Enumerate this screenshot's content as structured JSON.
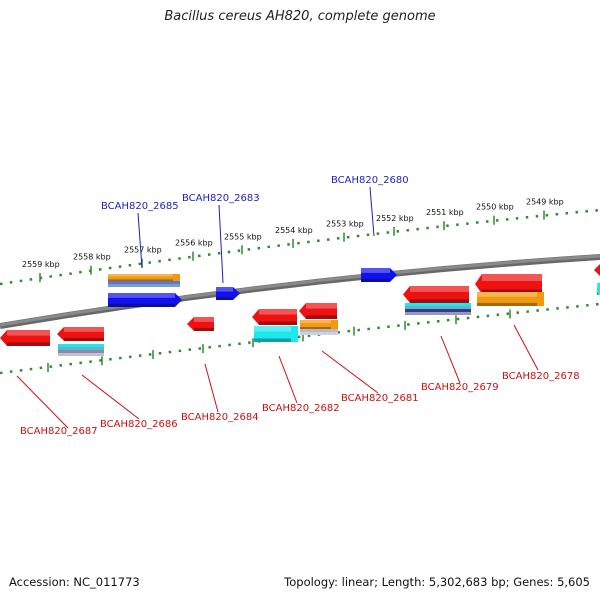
{
  "title": "Bacillus cereus AH820, complete genome",
  "footer": {
    "accession": "Accession: NC_011773",
    "summary": "Topology: linear; Length: 5,302,683 bp; Genes: 5,605"
  },
  "colors": {
    "backbone": "#8a8a8a",
    "scale": "#2e8b2e",
    "plus_label": "#1f1fbf",
    "minus_label": "#cc1111",
    "gene_red": "#ee1111",
    "gene_blue": "#1111ee",
    "gene_orange": "#f09a10",
    "gene_cyan": "#1ce8ee",
    "gene_gray": "#a8a8b8"
  },
  "scale_labels": [
    "2559 kbp",
    "2558 kbp",
    "2557 kbp",
    "2556 kbp",
    "2555 kbp",
    "2554 kbp",
    "2553 kbp",
    "2552 kbp",
    "2551 kbp",
    "2550 kbp",
    "2549 kbp"
  ],
  "plus_genes": [
    "BCAH820_2685",
    "BCAH820_2683",
    "BCAH820_2680"
  ],
  "minus_genes": [
    "BCAH820_2687",
    "BCAH820_2686",
    "BCAH820_2684",
    "BCAH820_2682",
    "BCAH820_2681",
    "BCAH820_2679",
    "BCAH820_2678"
  ]
}
